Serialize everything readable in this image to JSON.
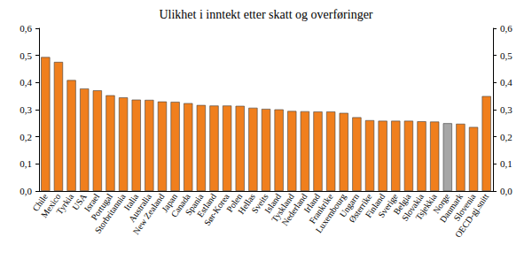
{
  "chart_data": {
    "type": "bar",
    "title": "Ulikhet i inntekt etter skatt og overføringer",
    "categories": [
      "Chile",
      "Mexico",
      "Tyrkia",
      "USA",
      "Israel",
      "Portugal",
      "Storbritannia",
      "Italia",
      "Australia",
      "New Zealand",
      "Japan",
      "Canada",
      "Spania",
      "Estland",
      "Sør-Korea",
      "Polen",
      "Hellas",
      "Sveits",
      "Island",
      "Tyskland",
      "Nederland",
      "Irland",
      "Frankrike",
      "Luxembourg",
      "Ungarn",
      "Østerrike",
      "Finland",
      "Sverige",
      "Belgia",
      "Slovakia",
      "Tsjekkia",
      "Norge",
      "Danmark",
      "Slovenia",
      "OECD-gj.snitt"
    ],
    "values": [
      0.494,
      0.476,
      0.409,
      0.378,
      0.371,
      0.353,
      0.345,
      0.337,
      0.336,
      0.33,
      0.329,
      0.324,
      0.317,
      0.315,
      0.315,
      0.314,
      0.307,
      0.303,
      0.301,
      0.295,
      0.294,
      0.293,
      0.293,
      0.288,
      0.272,
      0.261,
      0.259,
      0.259,
      0.259,
      0.257,
      0.256,
      0.25,
      0.248,
      0.236,
      0.35
    ],
    "colors": [
      "#f07f1d",
      "#f07f1d",
      "#f07f1d",
      "#f07f1d",
      "#f07f1d",
      "#f07f1d",
      "#f07f1d",
      "#f07f1d",
      "#f07f1d",
      "#f07f1d",
      "#f07f1d",
      "#f07f1d",
      "#f07f1d",
      "#f07f1d",
      "#f07f1d",
      "#f07f1d",
      "#f07f1d",
      "#f07f1d",
      "#f07f1d",
      "#f07f1d",
      "#f07f1d",
      "#f07f1d",
      "#f07f1d",
      "#f07f1d",
      "#f07f1d",
      "#f07f1d",
      "#f07f1d",
      "#f07f1d",
      "#f07f1d",
      "#f07f1d",
      "#f07f1d",
      "#a6a6a6",
      "#f07f1d",
      "#f07f1d",
      "#f07f1d"
    ],
    "ylim": [
      0,
      0.6
    ],
    "yticks": [
      {
        "value": 0,
        "label": "0,0"
      },
      {
        "value": 0.1,
        "label": "0,1"
      },
      {
        "value": 0.2,
        "label": "0,2"
      },
      {
        "value": 0.3,
        "label": "0,3"
      },
      {
        "value": 0.4,
        "label": "0,4"
      },
      {
        "value": 0.5,
        "label": "0,5"
      },
      {
        "value": 0.6,
        "label": "0,6"
      }
    ],
    "y2lim": [
      0,
      0.6
    ],
    "y2ticks": [
      {
        "value": 0,
        "label": "0,0"
      },
      {
        "value": 0.1,
        "label": "0,1"
      },
      {
        "value": 0.2,
        "label": "0,2"
      },
      {
        "value": 0.3,
        "label": "0,3"
      },
      {
        "value": 0.4,
        "label": "0,4"
      },
      {
        "value": 0.5,
        "label": "0,5"
      },
      {
        "value": 0.6,
        "label": "0,6"
      }
    ],
    "grid": false
  }
}
